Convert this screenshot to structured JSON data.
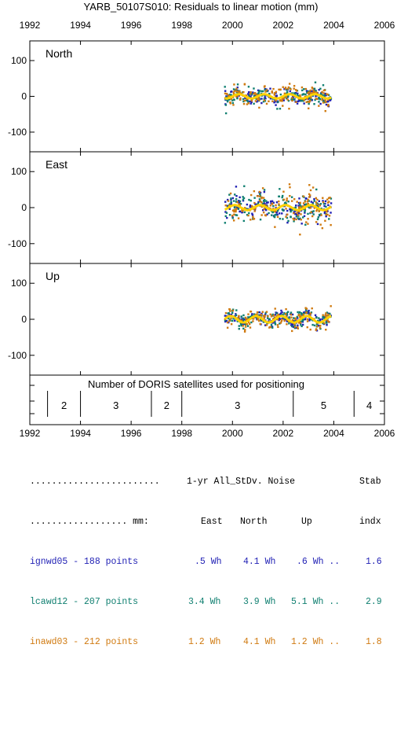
{
  "title": "YARB_50107S010: Residuals to linear motion (mm)",
  "chart_data": [
    {
      "type": "scatter",
      "panel": "North",
      "xlim": [
        1992,
        2006
      ],
      "ylim": [
        -155,
        155
      ],
      "xticks": [
        "1992",
        "1994",
        "1996",
        "1998",
        "2000",
        "2002",
        "2004",
        "2006"
      ],
      "yticks": [
        "100",
        "0",
        "-100"
      ],
      "data_span": [
        1999.7,
        2003.9
      ],
      "scatter_std_mm": 14,
      "series": [
        {
          "name": "ignwd05",
          "color": "#1f1fb4"
        },
        {
          "name": "lcawd12",
          "color": "#0f7f70"
        },
        {
          "name": "inawd03",
          "color": "#d07a10"
        }
      ],
      "smooth_curve": {
        "color": "#ffd200",
        "amplitude_mm": 6,
        "period_yr": 1.0
      }
    },
    {
      "type": "scatter",
      "panel": "East",
      "xlim": [
        1992,
        2006
      ],
      "ylim": [
        -155,
        155
      ],
      "yticks": [
        "100",
        "0",
        "-100"
      ],
      "data_span": [
        1999.7,
        2003.9
      ],
      "scatter_std_mm": 24,
      "smooth_curve": {
        "color": "#ffd200",
        "amplitude_mm": 7,
        "period_yr": 1.0
      }
    },
    {
      "type": "scatter",
      "panel": "Up",
      "xlim": [
        1992,
        2006
      ],
      "ylim": [
        -155,
        155
      ],
      "yticks": [
        "100",
        "0",
        "-100"
      ],
      "data_span": [
        1999.7,
        2003.9
      ],
      "scatter_std_mm": 13,
      "smooth_curve": {
        "color": "#ffd200",
        "amplitude_mm": 9,
        "period_yr": 1.0
      }
    },
    {
      "type": "bar",
      "panel": "satellites",
      "title": "Number of DORIS satellites used for positioning",
      "xlim": [
        1992,
        2006
      ],
      "boundaries": [
        1992.7,
        1994.0,
        1996.8,
        1998.0,
        2002.4,
        2004.8
      ],
      "segments": [
        {
          "from": 1992.7,
          "to": 1994.0,
          "label": "2"
        },
        {
          "from": 1994.0,
          "to": 1996.8,
          "label": "3"
        },
        {
          "from": 1996.8,
          "to": 1998.0,
          "label": "2"
        },
        {
          "from": 1998.0,
          "to": 2002.4,
          "label": "3"
        },
        {
          "from": 2002.4,
          "to": 2004.8,
          "label": "5"
        },
        {
          "from": 2004.8,
          "to": 2006.0,
          "label": "4"
        }
      ]
    }
  ],
  "stats": {
    "header1": {
      "dots": "........................",
      "col": "1-yr All_StDv. Noise",
      "stab": "Stab"
    },
    "header2": {
      "dots": ".................. mm:",
      "east": "East",
      "north": "North",
      "up": "Up",
      "indx": "indx"
    },
    "rows": [
      {
        "name": "ignwd05 - 188 points",
        "east": ".5 Wh",
        "north": "4.1 Wh",
        "up": ".6 Wh ..",
        "stab": "1.6",
        "color": "#1f1fb4"
      },
      {
        "name": "lcawd12 - 207 points",
        "east": "3.4 Wh",
        "north": "3.9 Wh",
        "up": "5.1 Wh ..",
        "stab": "2.9",
        "color": "#0f7f70"
      },
      {
        "name": "inawd03 - 212 points",
        "east": "1.2 Wh",
        "north": "4.1 Wh",
        "up": "1.2 Wh ..",
        "stab": "1.8",
        "color": "#d07a10"
      }
    ]
  }
}
